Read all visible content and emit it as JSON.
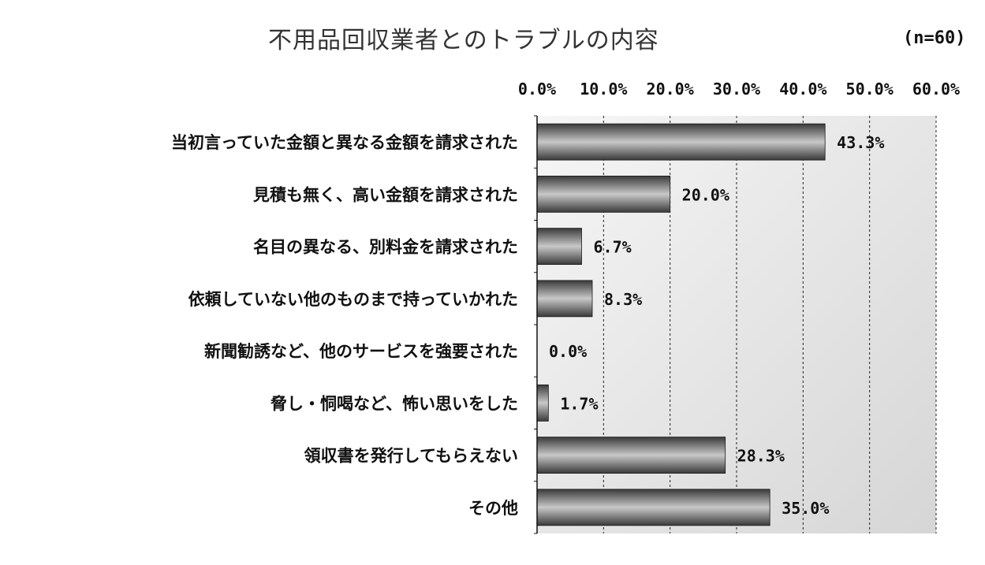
{
  "chart_data": {
    "type": "bar",
    "orientation": "horizontal",
    "title": "不用品回収業者とのトラブルの内容",
    "note": "(n=60)",
    "categories": [
      "当初言っていた金額と異なる金額を請求された",
      "見積も無く、高い金額を請求された",
      "名目の異なる、別料金を請求された",
      "依頼していない他のものまで持っていかれた",
      "新聞勧誘など、他のサービスを強要された",
      "脅し・恫喝など、怖い思いをした",
      "領収書を発行してもらえない",
      "その他"
    ],
    "values": [
      43.3,
      20.0,
      6.7,
      8.3,
      0.0,
      1.7,
      28.3,
      35.0
    ],
    "value_labels": [
      "43.3%",
      "20.0%",
      "6.7%",
      "8.3%",
      "0.0%",
      "1.7%",
      "28.3%",
      "35.0%"
    ],
    "xlim": [
      0,
      60
    ],
    "ticks": [
      0,
      10,
      20,
      30,
      40,
      50,
      60
    ],
    "tick_labels": [
      "0.0%",
      "10.0%",
      "20.0%",
      "30.0%",
      "40.0%",
      "50.0%",
      "60.0%"
    ],
    "axis_position": "top",
    "grid": true,
    "legend": "none",
    "colors": {
      "bar_dark": "#3a3a3a",
      "bar_light": "#c8c8c8",
      "plot_bg_start": "#f6f6f6",
      "plot_bg_end": "#d6d6d6",
      "grid": "#222222"
    }
  }
}
